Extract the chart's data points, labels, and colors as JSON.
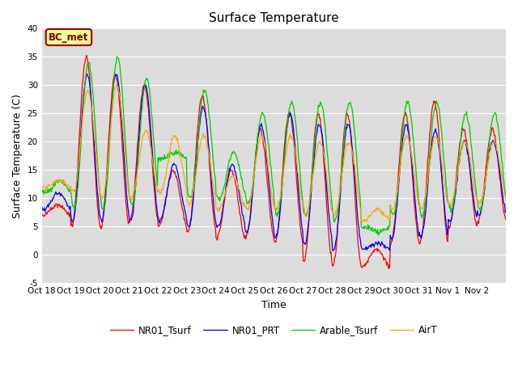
{
  "title": "Surface Temperature",
  "ylabel": "Surface Temperature (C)",
  "xlabel": "Time",
  "ylim": [
    -5,
    40
  ],
  "yticks": [
    -5,
    0,
    5,
    10,
    15,
    20,
    25,
    30,
    35,
    40
  ],
  "xtick_labels": [
    "Oct 18",
    "Oct 19",
    "Oct 20",
    "Oct 21",
    "Oct 22",
    "Oct 23",
    "Oct 24",
    "Oct 25",
    "Oct 26",
    "Oct 27",
    "Oct 28",
    "Oct 29",
    "Oct 30",
    "Oct 31",
    "Nov 1",
    "Nov 2"
  ],
  "line_colors": {
    "NR01_Tsurf": "#FF0000",
    "NR01_PRT": "#0000FF",
    "Arable_Tsurf": "#00CC00",
    "AirT": "#FFA500"
  },
  "annotation_text": "BC_met",
  "annotation_bg": "#FFFF99",
  "annotation_border": "#990000",
  "fig_bg": "#FFFFFF",
  "plot_bg": "#DCDCDC",
  "title_fontsize": 11,
  "axis_fontsize": 9,
  "tick_fontsize": 7.5,
  "linewidth": 0.9,
  "legend_entries": [
    "NR01_Tsurf",
    "NR01_PRT",
    "Arable_Tsurf",
    "AirT"
  ],
  "peaks_NR01": [
    9,
    35,
    32,
    30,
    15,
    28,
    15,
    22,
    25,
    25,
    25,
    1,
    25,
    27,
    22,
    22
  ],
  "troughs_NR01": [
    7,
    5,
    5,
    6,
    5,
    4,
    3,
    3,
    2,
    -1,
    -2,
    -2,
    2,
    2,
    5,
    6
  ],
  "peaks_PRT": [
    11,
    32,
    32,
    30,
    16,
    26,
    16,
    23,
    25,
    23,
    23,
    2,
    23,
    22,
    20,
    20
  ],
  "troughs_PRT": [
    8,
    6,
    6,
    6,
    6,
    5,
    5,
    4,
    3,
    2,
    1,
    1,
    3,
    3,
    6,
    7
  ],
  "peaks_Arable": [
    13,
    34,
    35,
    31,
    18,
    29,
    18,
    25,
    27,
    27,
    27,
    4,
    27,
    27,
    25,
    25
  ],
  "troughs_Arable": [
    11,
    8,
    8,
    9,
    17,
    10,
    10,
    9,
    7,
    7,
    6,
    5,
    7,
    7,
    8,
    8
  ],
  "peaks_AirT": [
    13,
    29,
    30,
    22,
    21,
    21,
    14,
    21,
    21,
    20,
    20,
    8,
    21,
    21,
    20,
    20
  ],
  "troughs_AirT": [
    12,
    11,
    10,
    10,
    11,
    9,
    8,
    8,
    8,
    7,
    7,
    6,
    8,
    8,
    9,
    9
  ]
}
